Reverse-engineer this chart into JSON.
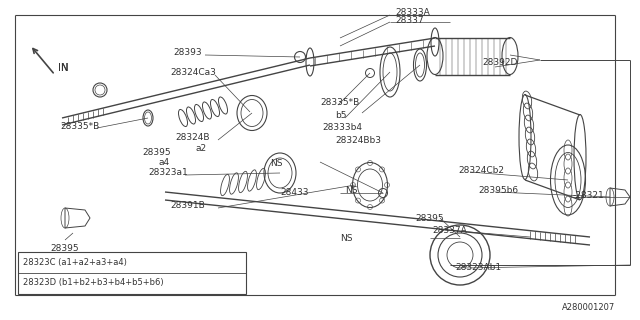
{
  "bg_color": "#ffffff",
  "line_color": "#444444",
  "label_color": "#333333",
  "diagram_id": "A280001207",
  "legend_lines": [
    "28323C (a1+a2+a3+a4)",
    "28323D (b1+b2+b3+b4+b5+b6)"
  ]
}
